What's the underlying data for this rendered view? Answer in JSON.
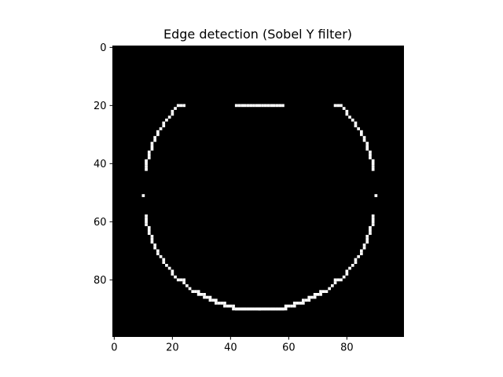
{
  "chart_data": {
    "type": "heatmap",
    "title": "Edge detection (Sobel Y filter)",
    "xlabel": "",
    "ylabel": "",
    "grid": false,
    "colormap": "gray",
    "colors": {
      "background": "#000000",
      "edge": "#ffffff"
    },
    "image_shape": [
      100,
      100
    ],
    "xlim": [
      -0.5,
      99.5
    ],
    "ylim": [
      99.5,
      -0.5
    ],
    "x_ticks": [
      0,
      20,
      40,
      60,
      80
    ],
    "x_tick_labels": [
      "0",
      "20",
      "40",
      "60",
      "80"
    ],
    "y_ticks": [
      0,
      20,
      40,
      60,
      80
    ],
    "y_tick_labels": [
      "0",
      "20",
      "40",
      "60",
      "80"
    ],
    "edge_pattern": {
      "description_source": "circle outline, center (50,50), radius 40; horizontal-gradient edges only",
      "center": [
        50,
        50
      ],
      "radius": 40,
      "upper_arc_y_range": [
        20,
        42
      ],
      "lower_arc_y_range": [
        58,
        90
      ],
      "side_points": [
        [
          10,
          51
        ],
        [
          90,
          51
        ]
      ]
    }
  }
}
